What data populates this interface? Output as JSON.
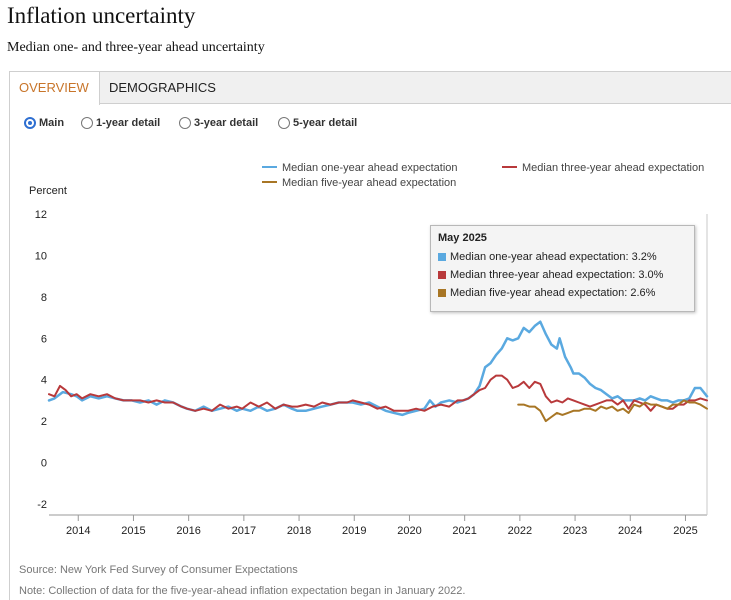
{
  "header": {
    "title": "Inflation uncertainty",
    "subtitle": "Median one- and three-year ahead uncertainty"
  },
  "tabs": [
    {
      "label": "OVERVIEW",
      "active": true
    },
    {
      "label": "DEMOGRAPHICS",
      "active": false
    }
  ],
  "radios": [
    {
      "label": "Main",
      "checked": true
    },
    {
      "label": "1-year detail",
      "checked": false
    },
    {
      "label": "3-year detail",
      "checked": false
    },
    {
      "label": "5-year detail",
      "checked": false
    }
  ],
  "tooltip": {
    "title": "May 2025",
    "rows": [
      {
        "text": "Median one-year ahead expectation: 3.2%",
        "color": "#5aa9e0"
      },
      {
        "text": "Median three-year ahead expectation: 3.0%",
        "color": "#b8393b"
      },
      {
        "text": "Median five-year ahead expectation: 2.6%",
        "color": "#a87625"
      }
    ]
  },
  "footer": {
    "source": "Source: New York Fed Survey of Consumer Expectations",
    "note": "Note: Collection of data for the five-year-ahead inflation expectation began in January 2022."
  },
  "chart_data": {
    "type": "line",
    "ylabel": "Percent",
    "ylim": [
      -2,
      12
    ],
    "yticks": [
      -2,
      0,
      2,
      4,
      6,
      8,
      10,
      12
    ],
    "xlim": [
      2013.5,
      2025.42
    ],
    "xticks": [
      "2014",
      "2015",
      "2016",
      "2017",
      "2018",
      "2019",
      "2020",
      "2021",
      "2022",
      "2023",
      "2024",
      "2025"
    ],
    "grid": false,
    "legend_position": "top-right",
    "series": [
      {
        "name": "Median one-year ahead expectation",
        "color": "#5aa9e0",
        "points": [
          [
            2013.5,
            3.0
          ],
          [
            2013.6,
            3.1
          ],
          [
            2013.75,
            3.4
          ],
          [
            2013.9,
            3.3
          ],
          [
            2014.0,
            3.2
          ],
          [
            2014.1,
            3.0
          ],
          [
            2014.25,
            3.2
          ],
          [
            2014.4,
            3.1
          ],
          [
            2014.55,
            3.2
          ],
          [
            2014.7,
            3.1
          ],
          [
            2014.85,
            3.0
          ],
          [
            2015.0,
            3.0
          ],
          [
            2015.15,
            2.9
          ],
          [
            2015.3,
            3.0
          ],
          [
            2015.45,
            2.8
          ],
          [
            2015.6,
            3.0
          ],
          [
            2015.75,
            2.9
          ],
          [
            2015.9,
            2.7
          ],
          [
            2016.0,
            2.6
          ],
          [
            2016.15,
            2.5
          ],
          [
            2016.3,
            2.7
          ],
          [
            2016.45,
            2.5
          ],
          [
            2016.6,
            2.6
          ],
          [
            2016.75,
            2.7
          ],
          [
            2016.9,
            2.5
          ],
          [
            2017.0,
            2.6
          ],
          [
            2017.15,
            2.5
          ],
          [
            2017.3,
            2.7
          ],
          [
            2017.45,
            2.5
          ],
          [
            2017.6,
            2.6
          ],
          [
            2017.75,
            2.8
          ],
          [
            2017.9,
            2.6
          ],
          [
            2018.0,
            2.5
          ],
          [
            2018.15,
            2.5
          ],
          [
            2018.3,
            2.6
          ],
          [
            2018.45,
            2.7
          ],
          [
            2018.6,
            2.8
          ],
          [
            2018.75,
            2.9
          ],
          [
            2018.9,
            2.9
          ],
          [
            2019.0,
            2.9
          ],
          [
            2019.15,
            2.8
          ],
          [
            2019.3,
            2.9
          ],
          [
            2019.45,
            2.7
          ],
          [
            2019.6,
            2.5
          ],
          [
            2019.75,
            2.4
          ],
          [
            2019.9,
            2.3
          ],
          [
            2020.0,
            2.4
          ],
          [
            2020.15,
            2.5
          ],
          [
            2020.3,
            2.6
          ],
          [
            2020.4,
            3.0
          ],
          [
            2020.5,
            2.7
          ],
          [
            2020.6,
            2.9
          ],
          [
            2020.75,
            3.0
          ],
          [
            2020.9,
            2.9
          ],
          [
            2021.0,
            3.0
          ],
          [
            2021.1,
            3.1
          ],
          [
            2021.2,
            3.3
          ],
          [
            2021.3,
            3.7
          ],
          [
            2021.4,
            4.6
          ],
          [
            2021.5,
            4.8
          ],
          [
            2021.6,
            5.2
          ],
          [
            2021.7,
            5.5
          ],
          [
            2021.8,
            6.0
          ],
          [
            2021.9,
            5.9
          ],
          [
            2022.0,
            6.0
          ],
          [
            2022.1,
            6.5
          ],
          [
            2022.2,
            6.3
          ],
          [
            2022.3,
            6.6
          ],
          [
            2022.4,
            6.8
          ],
          [
            2022.5,
            6.2
          ],
          [
            2022.6,
            5.7
          ],
          [
            2022.7,
            5.5
          ],
          [
            2022.75,
            6.0
          ],
          [
            2022.85,
            5.1
          ],
          [
            2022.95,
            4.6
          ],
          [
            2023.0,
            4.3
          ],
          [
            2023.1,
            4.3
          ],
          [
            2023.2,
            4.1
          ],
          [
            2023.3,
            3.8
          ],
          [
            2023.4,
            3.6
          ],
          [
            2023.5,
            3.5
          ],
          [
            2023.6,
            3.3
          ],
          [
            2023.7,
            3.1
          ],
          [
            2023.8,
            3.2
          ],
          [
            2023.9,
            3.0
          ],
          [
            2024.0,
            3.0
          ],
          [
            2024.1,
            3.0
          ],
          [
            2024.2,
            3.1
          ],
          [
            2024.3,
            3.0
          ],
          [
            2024.4,
            3.2
          ],
          [
            2024.5,
            3.1
          ],
          [
            2024.6,
            3.0
          ],
          [
            2024.7,
            3.0
          ],
          [
            2024.8,
            2.9
          ],
          [
            2024.9,
            3.0
          ],
          [
            2025.0,
            3.0
          ],
          [
            2025.1,
            3.1
          ],
          [
            2025.2,
            3.6
          ],
          [
            2025.3,
            3.6
          ],
          [
            2025.42,
            3.2
          ]
        ]
      },
      {
        "name": "Median three-year ahead expectation",
        "color": "#b8393b",
        "points": [
          [
            2013.5,
            3.3
          ],
          [
            2013.6,
            3.2
          ],
          [
            2013.7,
            3.7
          ],
          [
            2013.8,
            3.5
          ],
          [
            2013.9,
            3.2
          ],
          [
            2014.0,
            3.3
          ],
          [
            2014.1,
            3.1
          ],
          [
            2014.25,
            3.3
          ],
          [
            2014.4,
            3.2
          ],
          [
            2014.55,
            3.3
          ],
          [
            2014.7,
            3.1
          ],
          [
            2014.85,
            3.0
          ],
          [
            2015.0,
            3.0
          ],
          [
            2015.15,
            3.0
          ],
          [
            2015.3,
            2.9
          ],
          [
            2015.45,
            3.0
          ],
          [
            2015.6,
            2.9
          ],
          [
            2015.75,
            2.9
          ],
          [
            2015.9,
            2.7
          ],
          [
            2016.0,
            2.6
          ],
          [
            2016.15,
            2.5
          ],
          [
            2016.3,
            2.6
          ],
          [
            2016.45,
            2.5
          ],
          [
            2016.6,
            2.8
          ],
          [
            2016.75,
            2.6
          ],
          [
            2016.9,
            2.7
          ],
          [
            2017.0,
            2.6
          ],
          [
            2017.15,
            2.9
          ],
          [
            2017.3,
            2.7
          ],
          [
            2017.45,
            2.9
          ],
          [
            2017.6,
            2.6
          ],
          [
            2017.75,
            2.8
          ],
          [
            2017.9,
            2.7
          ],
          [
            2018.0,
            2.7
          ],
          [
            2018.15,
            2.8
          ],
          [
            2018.3,
            2.7
          ],
          [
            2018.45,
            2.9
          ],
          [
            2018.6,
            2.8
          ],
          [
            2018.75,
            2.9
          ],
          [
            2018.9,
            2.9
          ],
          [
            2019.0,
            3.0
          ],
          [
            2019.15,
            2.9
          ],
          [
            2019.3,
            2.8
          ],
          [
            2019.45,
            2.6
          ],
          [
            2019.6,
            2.7
          ],
          [
            2019.75,
            2.5
          ],
          [
            2019.9,
            2.5
          ],
          [
            2020.0,
            2.5
          ],
          [
            2020.15,
            2.6
          ],
          [
            2020.3,
            2.5
          ],
          [
            2020.45,
            2.7
          ],
          [
            2020.6,
            2.8
          ],
          [
            2020.75,
            2.7
          ],
          [
            2020.9,
            3.0
          ],
          [
            2021.0,
            3.0
          ],
          [
            2021.1,
            3.1
          ],
          [
            2021.2,
            3.3
          ],
          [
            2021.3,
            3.5
          ],
          [
            2021.4,
            3.6
          ],
          [
            2021.5,
            4.0
          ],
          [
            2021.6,
            4.2
          ],
          [
            2021.7,
            4.2
          ],
          [
            2021.8,
            4.0
          ],
          [
            2021.9,
            3.6
          ],
          [
            2022.0,
            3.7
          ],
          [
            2022.1,
            3.9
          ],
          [
            2022.2,
            3.6
          ],
          [
            2022.3,
            3.9
          ],
          [
            2022.4,
            3.8
          ],
          [
            2022.5,
            3.2
          ],
          [
            2022.6,
            2.9
          ],
          [
            2022.7,
            3.0
          ],
          [
            2022.8,
            2.9
          ],
          [
            2022.9,
            3.1
          ],
          [
            2023.0,
            3.0
          ],
          [
            2023.1,
            2.9
          ],
          [
            2023.2,
            2.8
          ],
          [
            2023.3,
            2.7
          ],
          [
            2023.4,
            2.8
          ],
          [
            2023.5,
            2.9
          ],
          [
            2023.6,
            3.0
          ],
          [
            2023.7,
            3.0
          ],
          [
            2023.8,
            2.8
          ],
          [
            2023.9,
            3.0
          ],
          [
            2024.0,
            2.6
          ],
          [
            2024.1,
            3.0
          ],
          [
            2024.2,
            2.9
          ],
          [
            2024.3,
            2.8
          ],
          [
            2024.4,
            2.5
          ],
          [
            2024.5,
            2.8
          ],
          [
            2024.6,
            2.7
          ],
          [
            2024.7,
            2.6
          ],
          [
            2024.8,
            2.6
          ],
          [
            2024.9,
            2.8
          ],
          [
            2025.0,
            2.8
          ],
          [
            2025.1,
            3.0
          ],
          [
            2025.2,
            3.0
          ],
          [
            2025.3,
            3.1
          ],
          [
            2025.42,
            3.0
          ]
        ]
      },
      {
        "name": "Median five-year ahead expectation",
        "color": "#a87625",
        "points": [
          [
            2022.0,
            2.8
          ],
          [
            2022.1,
            2.8
          ],
          [
            2022.2,
            2.7
          ],
          [
            2022.3,
            2.7
          ],
          [
            2022.4,
            2.5
          ],
          [
            2022.5,
            2.0
          ],
          [
            2022.6,
            2.2
          ],
          [
            2022.7,
            2.4
          ],
          [
            2022.8,
            2.3
          ],
          [
            2022.9,
            2.4
          ],
          [
            2023.0,
            2.5
          ],
          [
            2023.1,
            2.5
          ],
          [
            2023.2,
            2.6
          ],
          [
            2023.3,
            2.6
          ],
          [
            2023.4,
            2.5
          ],
          [
            2023.5,
            2.7
          ],
          [
            2023.6,
            2.6
          ],
          [
            2023.7,
            2.7
          ],
          [
            2023.8,
            2.5
          ],
          [
            2023.9,
            2.6
          ],
          [
            2024.0,
            2.4
          ],
          [
            2024.1,
            2.8
          ],
          [
            2024.2,
            2.7
          ],
          [
            2024.3,
            2.9
          ],
          [
            2024.4,
            2.8
          ],
          [
            2024.5,
            2.8
          ],
          [
            2024.6,
            2.7
          ],
          [
            2024.7,
            2.6
          ],
          [
            2024.8,
            2.8
          ],
          [
            2024.9,
            2.8
          ],
          [
            2025.0,
            3.0
          ],
          [
            2025.1,
            2.9
          ],
          [
            2025.2,
            2.9
          ],
          [
            2025.3,
            2.8
          ],
          [
            2025.42,
            2.6
          ]
        ]
      }
    ]
  }
}
